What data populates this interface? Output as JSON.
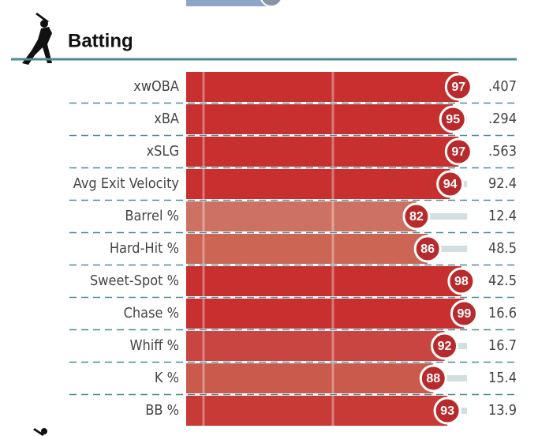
{
  "chart_data": {
    "type": "bar",
    "title": "Batting",
    "categories": [
      "xwOBA",
      "xBA",
      "xSLG",
      "Avg Exit Velocity",
      "Barrel %",
      "Hard-Hit %",
      "Sweet-Spot %",
      "Chase %",
      "Whiff %",
      "K %",
      "BB %"
    ],
    "values": [
      97,
      95,
      97,
      94,
      82,
      86,
      98,
      99,
      92,
      88,
      93
    ],
    "colors": [
      "#c7302e",
      "#c7302e",
      "#c7302e",
      "#c7302e",
      "#cd7263",
      "#cc6553",
      "#c7302e",
      "#c7302e",
      "#c94541",
      "#ca5a4b",
      "#c83a36"
    ],
    "stats": [
      ".407",
      ".294",
      ".563",
      "92.4",
      "12.4",
      "48.5",
      "42.5",
      "16.6",
      "16.7",
      "15.4",
      "13.9"
    ],
    "xlim": [
      0,
      100
    ]
  }
}
